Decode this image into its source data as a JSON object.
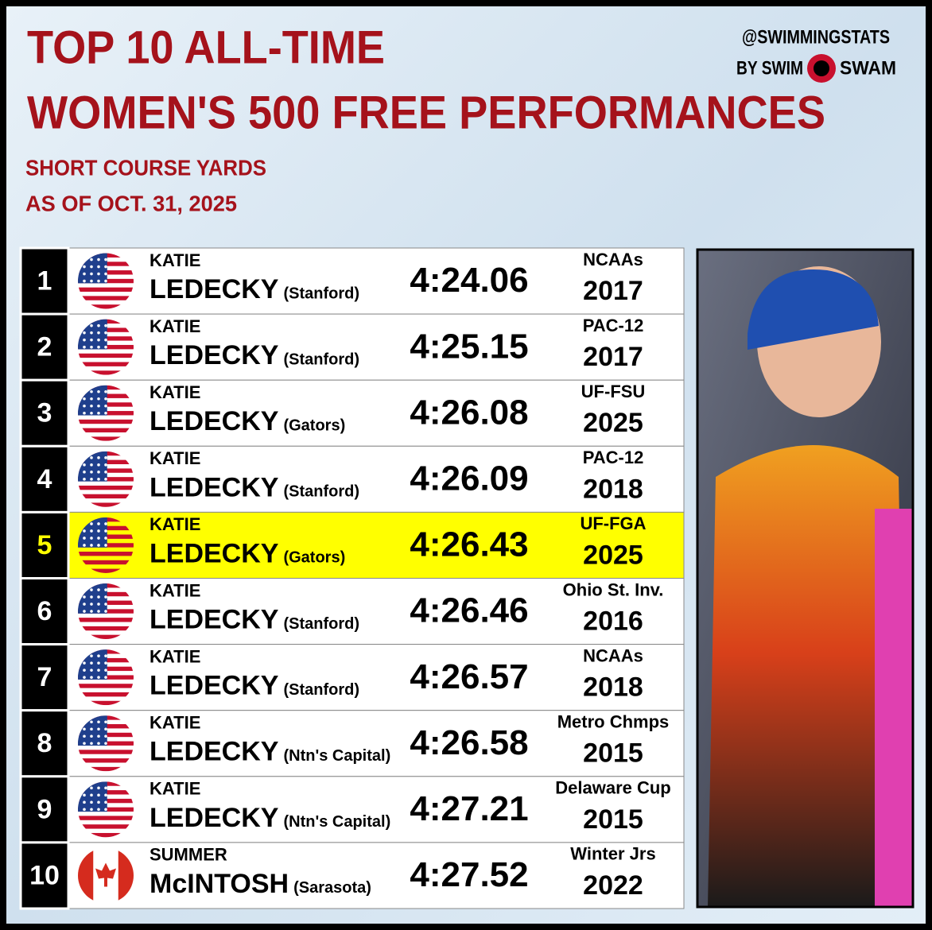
{
  "header": {
    "title_line1": "TOP 10 ALL-TIME",
    "title_line2": "WOMEN'S 500 FREE PERFORMANCES",
    "subtitle_line1": "SHORT COURSE YARDS",
    "subtitle_line2": "AS OF OCT. 31, 2025",
    "brand_line1": "@SWIMMINGSTATS",
    "brand_by": "BY SWIM",
    "brand_swam": "SWAM"
  },
  "table": {
    "rows": [
      {
        "rank": "1",
        "flag": "usa",
        "first": "KATIE",
        "last": "LEDECKY",
        "team": "(Stanford)",
        "time": "4:24.06",
        "meet": "NCAAs",
        "year": "2017"
      },
      {
        "rank": "2",
        "flag": "usa",
        "first": "KATIE",
        "last": "LEDECKY",
        "team": "(Stanford)",
        "time": "4:25.15",
        "meet": "PAC-12",
        "year": "2017"
      },
      {
        "rank": "3",
        "flag": "usa",
        "first": "KATIE",
        "last": "LEDECKY",
        "team": "(Gators)",
        "time": "4:26.08",
        "meet": "UF-FSU",
        "year": "2025"
      },
      {
        "rank": "4",
        "flag": "usa",
        "first": "KATIE",
        "last": "LEDECKY",
        "team": "(Stanford)",
        "time": "4:26.09",
        "meet": "PAC-12",
        "year": "2018"
      },
      {
        "rank": "5",
        "flag": "usa",
        "first": "KATIE",
        "last": "LEDECKY",
        "team": "(Gators)",
        "time": "4:26.43",
        "meet": "UF-FGA",
        "year": "2025",
        "highlight": true
      },
      {
        "rank": "6",
        "flag": "usa",
        "first": "KATIE",
        "last": "LEDECKY",
        "team": "(Stanford)",
        "time": "4:26.46",
        "meet": "Ohio St. Inv.",
        "year": "2016"
      },
      {
        "rank": "7",
        "flag": "usa",
        "first": "KATIE",
        "last": "LEDECKY",
        "team": "(Stanford)",
        "time": "4:26.57",
        "meet": "NCAAs",
        "year": "2018"
      },
      {
        "rank": "8",
        "flag": "usa",
        "first": "KATIE",
        "last": "LEDECKY",
        "team": "(Ntn's Capital)",
        "time": "4:26.58",
        "meet": "Metro Chmps",
        "year": "2015"
      },
      {
        "rank": "9",
        "flag": "usa",
        "first": "KATIE",
        "last": "LEDECKY",
        "team": "(Ntn's Capital)",
        "time": "4:27.21",
        "meet": "Delaware Cup",
        "year": "2015"
      },
      {
        "rank": "10",
        "flag": "canada",
        "first": "SUMMER",
        "last": "McINTOSH",
        "team": "(Sarasota)",
        "time": "4:27.52",
        "meet": "Winter Jrs",
        "year": "2022"
      }
    ]
  }
}
